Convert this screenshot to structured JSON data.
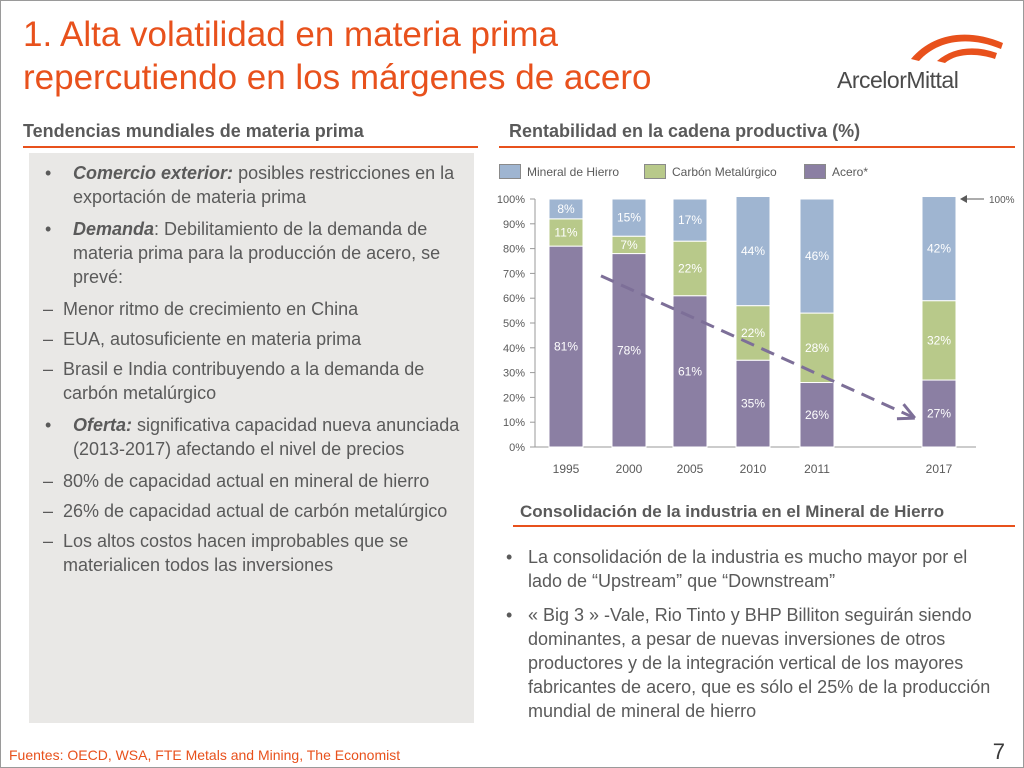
{
  "title": {
    "line1": "1. Alta volatilidad en materia prima",
    "line2": "repercutiendo en los márgenes de acero"
  },
  "logo": {
    "text": "ArcelorMittal"
  },
  "left_section": {
    "heading": "Tendencias mundiales de materia prima",
    "bullets": [
      {
        "lead": "Comercio exterior:",
        "text": " posibles restricciones en la exportación de materia prima",
        "subs": []
      },
      {
        "lead": "Demanda",
        "text": ": Debilitamiento de la demanda de materia prima para la producción de acero, se prevé:",
        "subs": [
          "Menor ritmo de crecimiento en China",
          "EUA, autosuficiente en materia prima",
          "Brasil e India contribuyendo a la demanda de carbón metalúrgico"
        ]
      },
      {
        "lead": "Oferta:",
        "text": " significativa capacidad nueva anunciada (2013-2017) afectando el nivel de precios",
        "subs": [
          "80% de capacidad actual en mineral de hierro",
          "26% de capacidad actual de carbón metalúrgico",
          "Los altos costos hacen improbables que se materialicen todos las inversiones"
        ]
      }
    ]
  },
  "right_section": {
    "heading": "Rentabilidad en la cadena productiva (%)"
  },
  "chart_data": {
    "type": "bar",
    "stacked": true,
    "categories": [
      "1995",
      "2000",
      "2005",
      "2010",
      "2011",
      "2017"
    ],
    "series": [
      {
        "name": "Acero*",
        "values": [
          81,
          78,
          61,
          35,
          26,
          27
        ],
        "color": "#8b7fa3",
        "label_color": "#ffffff"
      },
      {
        "name": "Carbón Metalúrgico",
        "values": [
          11,
          7,
          22,
          22,
          28,
          32
        ],
        "color": "#b8c98a",
        "label_color": "#ffffff"
      },
      {
        "name": "Mineral de Hierro",
        "values": [
          8,
          15,
          17,
          44,
          46,
          42
        ],
        "color": "#9fb5d1",
        "label_color": "#ffffff"
      }
    ],
    "legend_order": [
      "Mineral de Hierro",
      "Carbón Metalúrgico",
      "Acero*"
    ],
    "yticks": [
      "0%",
      "10%",
      "20%",
      "30%",
      "40%",
      "50%",
      "60%",
      "70%",
      "80%",
      "90%",
      "100%"
    ],
    "ylim": [
      0,
      100
    ],
    "annotation": "100%",
    "trend": {
      "from_category": "1995",
      "to_category": "2017",
      "from_value": 69,
      "to_value": 12
    },
    "legend_position": "top"
  },
  "consolidation": {
    "heading": "Consolidación de la industria en el Mineral de Hierro",
    "bullets": [
      "La consolidación de la industria es mucho mayor por el lado de “Upstream” que “Downstream”",
      "« Big 3 » -Vale, Rio Tinto y BHP Billiton seguirán siendo dominantes, a pesar de nuevas inversiones de otros productores y de la integración vertical de los mayores fabricantes de acero, que es sólo el 25% de la producción mundial de mineral de hierro"
    ]
  },
  "footer": "Fuentes: OECD, WSA, FTE Metals and Mining, The  Economist",
  "page_number": "7",
  "colors": {
    "accent": "#e8511c",
    "panel": "#e9e8e6",
    "text": "#5a5a5a"
  },
  "icons": {
    "bullet": "•",
    "dash": "–"
  }
}
